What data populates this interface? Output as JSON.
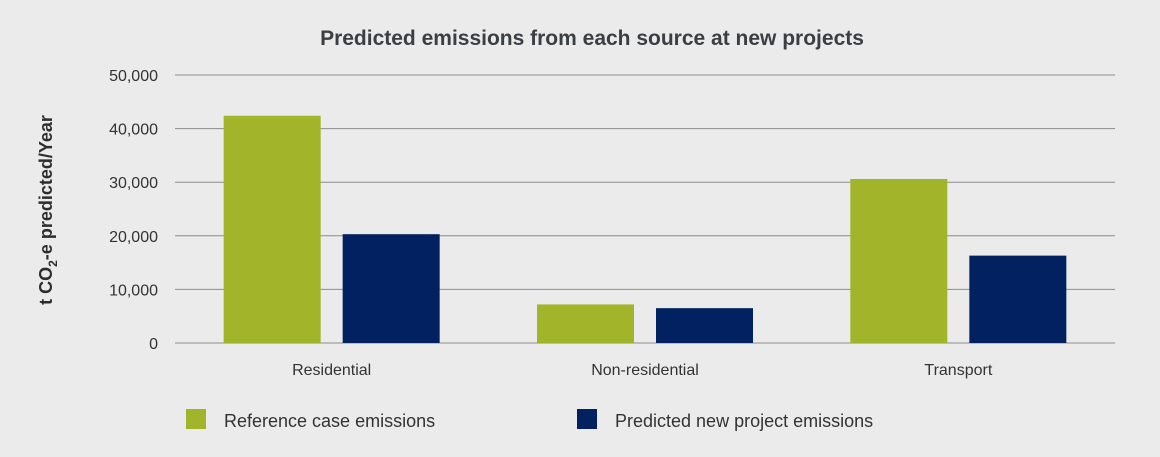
{
  "chart_data": {
    "type": "bar",
    "title": "Predicted emissions from each source at new projects",
    "ylabel": "t CO2-e predicted/Year",
    "ylabel_parts": {
      "pre": "t CO",
      "sub": "2",
      "post": "-e predicted/Year"
    },
    "xlabel": "",
    "categories": [
      "Residential",
      "Non-residential",
      "Transport"
    ],
    "ylim": [
      0,
      50000
    ],
    "yticks": [
      0,
      10000,
      20000,
      30000,
      40000,
      50000
    ],
    "ytick_labels": [
      "0",
      "10,000",
      "20,000",
      "30,000",
      "40,000",
      "50,000"
    ],
    "grid": true,
    "legend_position": "bottom",
    "series": [
      {
        "name": "Reference case emissions",
        "color": "#a2b52a",
        "values": [
          42400,
          7200,
          30600
        ]
      },
      {
        "name": "Predicted new project emissions",
        "color": "#012160",
        "values": [
          20300,
          6500,
          16300
        ]
      }
    ]
  }
}
